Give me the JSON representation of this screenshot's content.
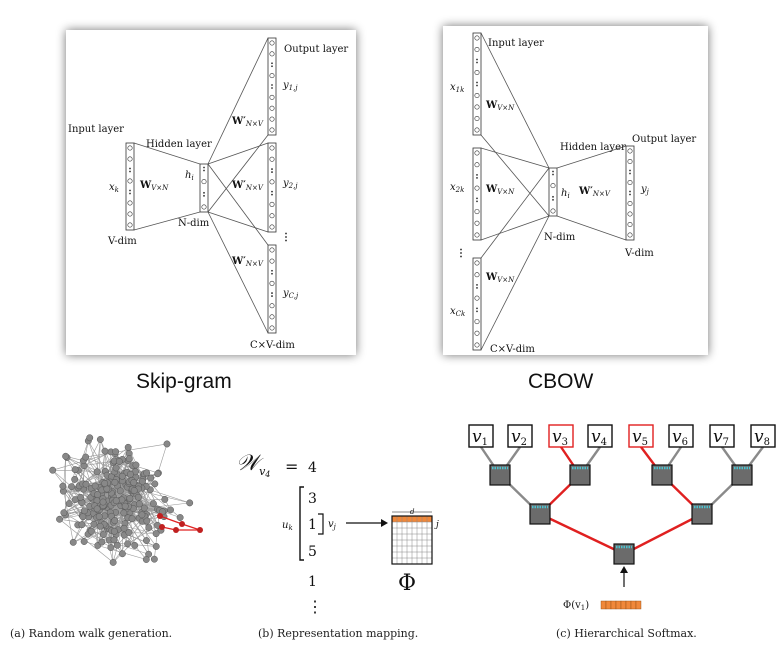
{
  "skipgram": {
    "title": "Skip-gram",
    "input_layer": "Input layer",
    "hidden_layer": "Hidden layer",
    "output_layer": "Output layer",
    "x_label": "x",
    "x_sub": "k",
    "h_label": "h",
    "h_sub": "i",
    "w_in": "W",
    "w_in_sub": "V×N",
    "w_out": "W′",
    "w_out_sub": "N×V",
    "v_dim": "V-dim",
    "n_dim": "N-dim",
    "cv_dim": "C×V-dim",
    "y_labels": [
      "y",
      "y",
      "y"
    ],
    "y_subs": [
      "1,j",
      "2,j",
      "C,j"
    ]
  },
  "cbow": {
    "title": "CBOW",
    "input_layer": "Input layer",
    "hidden_layer": "Hidden layer",
    "output_layer": "Output layer",
    "x_labels": [
      "x",
      "x",
      "x"
    ],
    "x_subs": [
      "1k",
      "2k",
      "Ck"
    ],
    "h_label": "h",
    "h_sub": "i",
    "w_in": "W",
    "w_in_sub": "V×N",
    "w_out": "W′",
    "w_out_sub": "N×V",
    "y_label": "y",
    "y_sub": "j",
    "n_dim": "N-dim",
    "v_dim": "V-dim",
    "cv_dim": "C×V-dim"
  },
  "mapping": {
    "w_symbol": "𝒲",
    "w_sub": "v",
    "w_subsub": "4",
    "equals": "=",
    "seq": [
      "4",
      "3",
      "1",
      "5",
      "1"
    ],
    "u_label": "u",
    "u_sub": "k",
    "v_label": "v",
    "v_sub": "j",
    "d_label": "d",
    "j_label": "j",
    "phi": "Φ",
    "vdots": "⋮"
  },
  "softmax": {
    "leaves": [
      {
        "label": "v",
        "sub": "1",
        "highlight": false
      },
      {
        "label": "v",
        "sub": "2",
        "highlight": false
      },
      {
        "label": "v",
        "sub": "3",
        "highlight": true
      },
      {
        "label": "v",
        "sub": "4",
        "highlight": false
      },
      {
        "label": "v",
        "sub": "5",
        "highlight": true
      },
      {
        "label": "v",
        "sub": "6",
        "highlight": false
      },
      {
        "label": "v",
        "sub": "7",
        "highlight": false
      },
      {
        "label": "v",
        "sub": "8",
        "highlight": false
      }
    ],
    "phi_label": "Φ(v",
    "phi_sub": "1",
    "phi_close": ")"
  },
  "captions": {
    "a": "(a) Random walk generation.",
    "b": "(b) Representation mapping.",
    "c": "(c) Hierarchical Softmax."
  },
  "colors": {
    "highlight": "#e02020",
    "orange": "#f0883a",
    "teal": "#4dc3d0",
    "node_dark": "#6b6b6b",
    "edge_gray": "#8a8a8a"
  }
}
